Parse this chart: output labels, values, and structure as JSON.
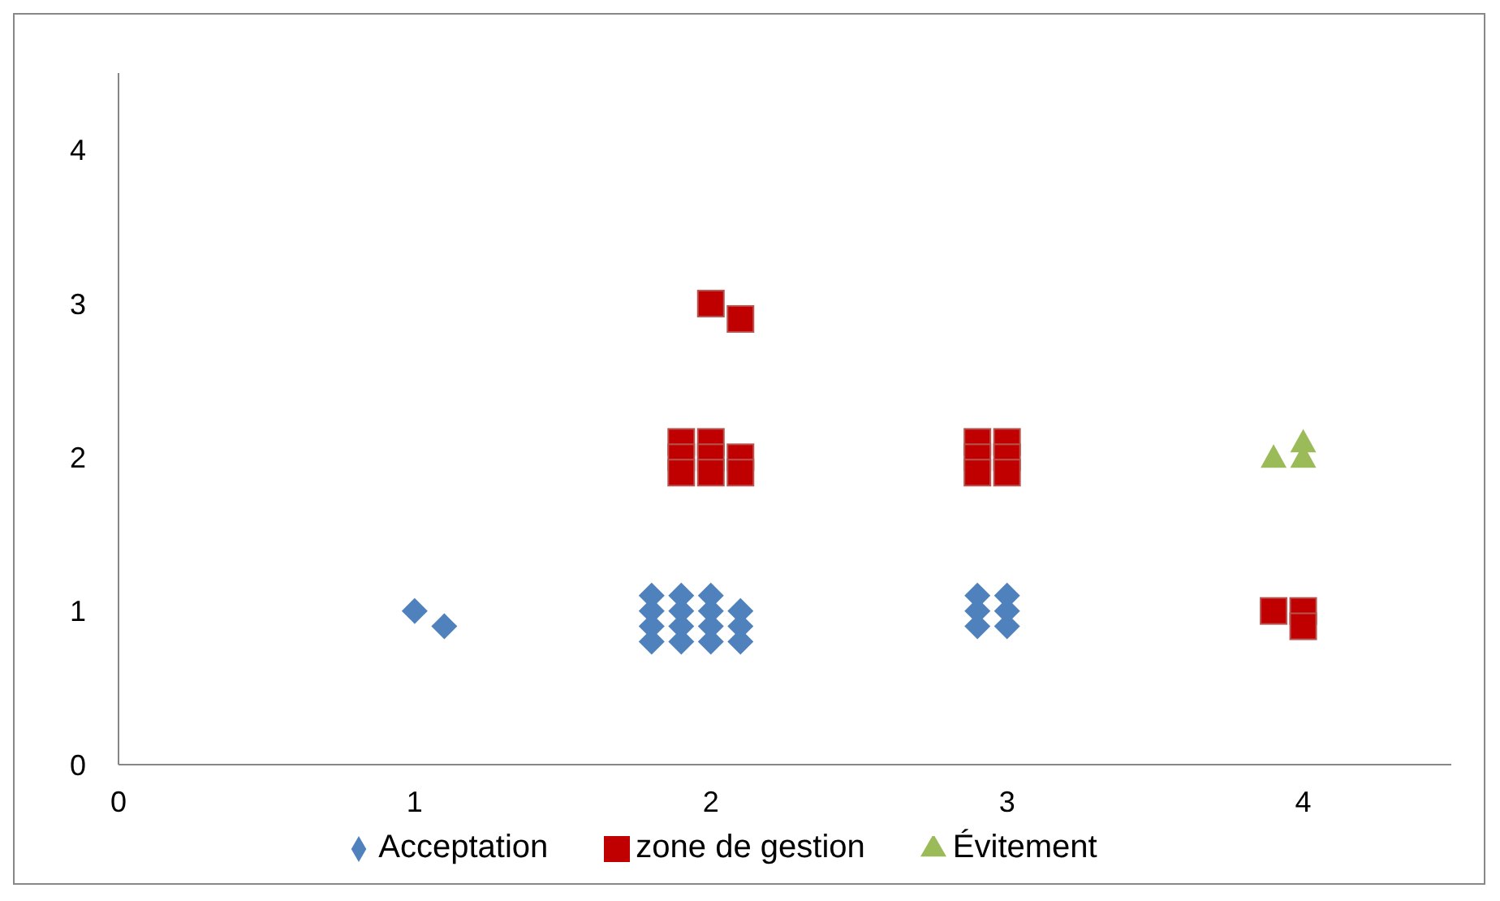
{
  "chart_data": {
    "type": "scatter",
    "xlim": [
      0,
      4.5
    ],
    "ylim": [
      0,
      4.5
    ],
    "xticks": [
      0,
      1,
      2,
      3,
      4
    ],
    "yticks": [
      0,
      1,
      2,
      3,
      4
    ],
    "grid": false,
    "legend": "bottom",
    "series": [
      {
        "name": "Acceptation",
        "color": "#4f81bd",
        "marker": "diamond",
        "x": [
          1,
          1.1,
          1.8,
          1.8,
          1.8,
          1.8,
          1.9,
          1.9,
          1.9,
          1.9,
          2,
          2,
          2,
          2,
          2.1,
          2.1,
          2.1,
          2.9,
          2.9,
          2.9,
          3,
          3,
          3
        ],
        "values": [
          1,
          0.9,
          1.1,
          1,
          0.9,
          0.8,
          1.1,
          1,
          0.9,
          0.8,
          1.1,
          1,
          0.9,
          0.8,
          1,
          0.9,
          0.8,
          1.1,
          1,
          0.9,
          1.1,
          1,
          0.9
        ]
      },
      {
        "name": "zone de gestion",
        "color": "#c00000",
        "marker": "square",
        "x": [
          2,
          2.1,
          1.9,
          1.9,
          1.9,
          2,
          2,
          2,
          2.1,
          2.1,
          2.9,
          2.9,
          2.9,
          3,
          3,
          3,
          3.9,
          4,
          4
        ],
        "values": [
          3,
          2.9,
          2.1,
          2,
          1.9,
          2.1,
          2,
          1.9,
          2,
          1.9,
          2.1,
          2,
          1.9,
          2.1,
          2,
          1.9,
          1,
          1,
          0.9
        ]
      },
      {
        "name": "Évitement",
        "color": "#9bbb59",
        "marker": "triangle",
        "x": [
          3.9,
          4,
          4
        ],
        "values": [
          2,
          2.1,
          2
        ]
      }
    ]
  }
}
